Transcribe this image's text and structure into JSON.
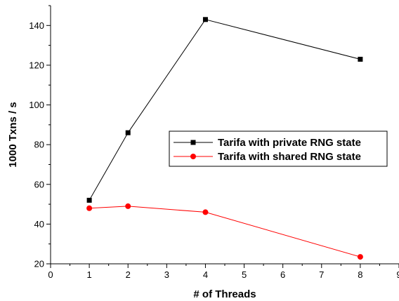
{
  "chart_data": {
    "type": "line",
    "title": "",
    "xlabel": "# of Threads",
    "ylabel": "1000 Txns / s",
    "xlim": [
      0,
      9
    ],
    "ylim": [
      20,
      150
    ],
    "x_ticks": [
      0,
      1,
      2,
      3,
      4,
      5,
      6,
      7,
      8,
      9
    ],
    "y_ticks": [
      20,
      40,
      60,
      80,
      100,
      120,
      140
    ],
    "grid": false,
    "legend_position": "center-right",
    "series": [
      {
        "name": "Tarifa with private RNG state",
        "color": "#000000",
        "marker": "square",
        "x": [
          1,
          2,
          4,
          8
        ],
        "y": [
          52,
          86,
          143,
          123
        ]
      },
      {
        "name": "Tarifa with shared RNG state",
        "color": "#ff0000",
        "marker": "circle",
        "x": [
          1,
          2,
          4,
          8
        ],
        "y": [
          48,
          49,
          46,
          23.5
        ]
      }
    ]
  }
}
